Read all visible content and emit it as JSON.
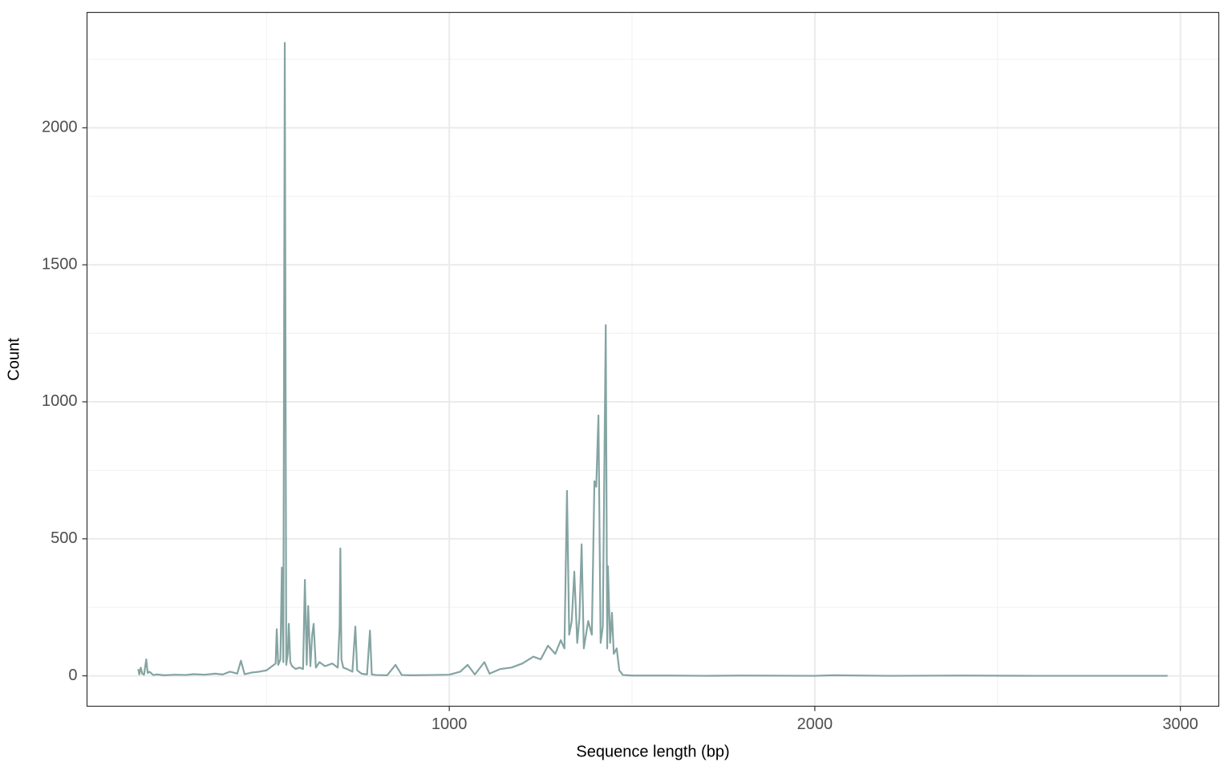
{
  "chart_data": {
    "type": "line",
    "x_label": "Sequence length (bp)",
    "y_label": "Count",
    "x": [
      149,
      152,
      156,
      160,
      165,
      171,
      175,
      180,
      190,
      200,
      220,
      250,
      280,
      300,
      330,
      360,
      380,
      400,
      420,
      430,
      440,
      460,
      480,
      500,
      515,
      525,
      528,
      532,
      538,
      542,
      546,
      550,
      554,
      558,
      561,
      565,
      570,
      580,
      590,
      600,
      605,
      610,
      614,
      620,
      625,
      629,
      635,
      645,
      660,
      680,
      695,
      700,
      702,
      705,
      710,
      720,
      735,
      743,
      748,
      760,
      775,
      783,
      788,
      800,
      830,
      853,
      870,
      900,
      950,
      1000,
      1030,
      1050,
      1070,
      1096,
      1110,
      1140,
      1170,
      1200,
      1230,
      1250,
      1270,
      1290,
      1305,
      1315,
      1322,
      1328,
      1335,
      1342,
      1350,
      1356,
      1362,
      1368,
      1380,
      1390,
      1397,
      1402,
      1408,
      1414,
      1420,
      1428,
      1432,
      1434,
      1440,
      1445,
      1450,
      1458,
      1465,
      1475,
      1500,
      1600,
      1700,
      1800,
      2000,
      2050,
      2200,
      2400,
      2600,
      2800,
      2965
    ],
    "series": [
      {
        "color": "#84a4a2",
        "values": [
          25,
          5,
          30,
          8,
          4,
          60,
          10,
          15,
          3,
          5,
          2,
          4,
          3,
          6,
          4,
          8,
          5,
          15,
          8,
          55,
          6,
          12,
          15,
          20,
          35,
          45,
          170,
          40,
          60,
          395,
          50,
          2310,
          40,
          80,
          190,
          50,
          35,
          25,
          30,
          25,
          350,
          40,
          255,
          35,
          150,
          190,
          30,
          50,
          35,
          45,
          30,
          180,
          465,
          60,
          30,
          25,
          15,
          180,
          20,
          8,
          5,
          165,
          5,
          3,
          2,
          40,
          3,
          2,
          3,
          4,
          15,
          40,
          5,
          50,
          8,
          25,
          30,
          45,
          70,
          60,
          110,
          80,
          130,
          100,
          675,
          150,
          200,
          380,
          120,
          210,
          480,
          100,
          200,
          150,
          710,
          690,
          950,
          120,
          180,
          1280,
          100,
          400,
          120,
          230,
          80,
          100,
          20,
          3,
          1,
          1,
          0,
          1,
          0,
          2,
          0,
          1,
          0,
          0,
          0
        ]
      }
    ],
    "xlim": [
      9,
      3105
    ],
    "ylim": [
      -111,
      2421
    ],
    "xticks": [
      1000,
      2000,
      3000
    ],
    "yticks": [
      0,
      500,
      1000,
      1500,
      2000
    ],
    "minor_xticks": [
      500,
      1500,
      2500
    ],
    "minor_yticks": [
      250,
      750,
      1250,
      1750,
      2250
    ],
    "grid": true
  }
}
